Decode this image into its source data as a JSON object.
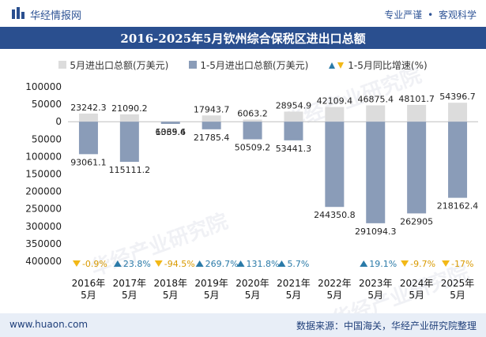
{
  "header": {
    "brand": "华经情报网",
    "tagline_left": "专业严谨",
    "tagline_right": "客观科学"
  },
  "title": "2016-2025年5月钦州综合保税区进出口总额",
  "legend": {
    "series1": "5月进出口总额(万美元)",
    "series2": "1-5月进出口总额(万美元)",
    "series3": "1-5月同比增速(%)"
  },
  "colors": {
    "bar_may": "#dcdcdc",
    "bar_ytd": "#8a9cb8",
    "title_bg": "#2a4f8f",
    "up": "#2a7aa8",
    "down": "#f2b817"
  },
  "watermark": "华经产业研究院",
  "footer": {
    "site": "www.huaon.com",
    "source": "数据来源：中国海关，华经产业研究院整理"
  },
  "chart_data": {
    "type": "bar",
    "categories": [
      "2016年\n5月",
      "2017年\n5月",
      "2018年\n5月",
      "2019年\n5月",
      "2020年\n5月",
      "2021年\n5月",
      "2022年\n5月",
      "2023年\n5月",
      "2024年\n5月",
      "2025年\n5月"
    ],
    "ylim": [
      -400000,
      100000
    ],
    "yticks": [
      100000,
      50000,
      0,
      -50000,
      -100000,
      -150000,
      -200000,
      -250000,
      -300000,
      -350000,
      -400000
    ],
    "ytick_labels": [
      "100000",
      "50000",
      "0",
      "50000",
      "100000",
      "150000",
      "200000",
      "250000",
      "300000",
      "350000",
      "400000"
    ],
    "series": [
      {
        "name": "5月进出口总额(万美元)",
        "values": [
          23242.3,
          21090.2,
          -1069.4,
          17943.7,
          6063.2,
          28954.9,
          42109.4,
          46875.4,
          48101.7,
          54396.7
        ],
        "labels": [
          "23242.3",
          "21090.2",
          "1069.4",
          "17943.7",
          "6063.2",
          "28954.9",
          "42109.4",
          "46875.4",
          "48101.7",
          "54396.7"
        ]
      },
      {
        "name": "1-5月进出口总额(万美元)",
        "values": [
          -93061.1,
          -115111.2,
          -6335.6,
          -21785.4,
          -50509.2,
          -53441.3,
          -244350.8,
          -291094.3,
          -262905,
          -218162.4
        ],
        "labels": [
          "93061.1",
          "115111.2",
          "6335.6",
          "21785.4",
          "50509.2",
          "53441.3",
          "244350.8",
          "291094.3",
          "262905",
          "218162.4"
        ]
      },
      {
        "name": "1-5月同比增速(%)",
        "values": [
          -0.9,
          23.8,
          -94.5,
          269.7,
          131.8,
          5.7,
          null,
          19.1,
          -9.7,
          -17
        ],
        "labels": [
          "-0.9%",
          "23.8%",
          "-94.5%",
          "269.7%",
          "131.8%",
          "5.7%",
          "",
          "19.1%",
          "-9.7%",
          "-17%"
        ]
      }
    ]
  }
}
